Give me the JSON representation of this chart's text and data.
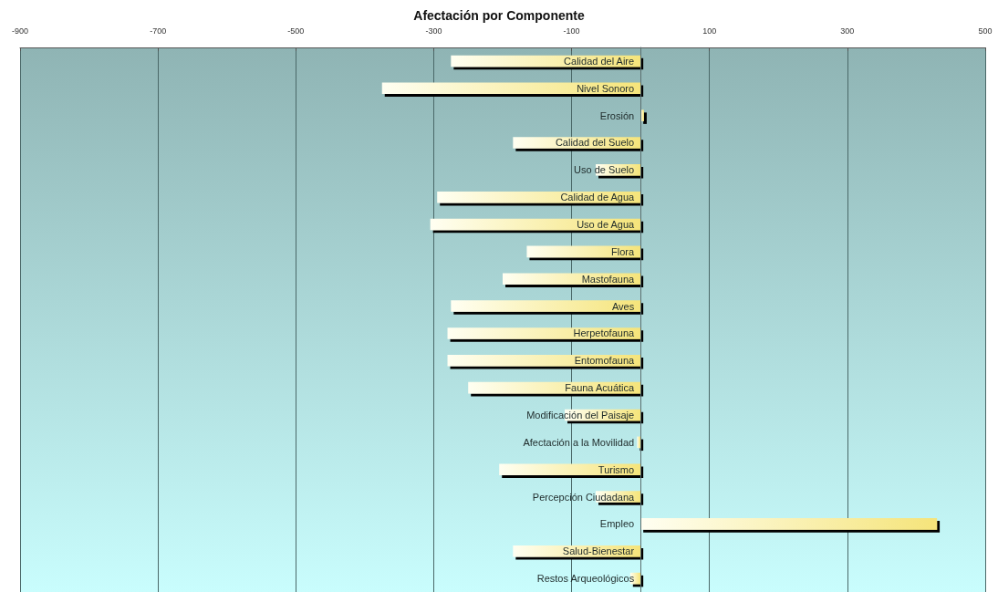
{
  "chart_data": {
    "type": "bar",
    "orientation": "horizontal",
    "title": "Afectación por Componente",
    "categories": [
      "Calidad del Aire",
      "Nivel Sonoro",
      "Erosión",
      "Calidad del Suelo",
      "Uso de Suelo",
      "Calidad de Agua",
      "Uso de Agua",
      "Flora",
      "Mastofauna",
      "Aves",
      "Herpetofauna",
      "Entomofauna",
      "Fauna Acuática",
      "Modificación del Paisaje",
      "Afectación a la Movilidad",
      "Turismo",
      "Percepción Ciudadana",
      "Empleo",
      "Salud-Bienestar",
      "Restos Arqueológicos"
    ],
    "values": [
      -275,
      -375,
      5,
      -185,
      -65,
      -295,
      -305,
      -165,
      -200,
      -275,
      -280,
      -280,
      -250,
      -110,
      -5,
      -205,
      -65,
      430,
      -185,
      -15
    ],
    "color": "#f5e47a",
    "xlim": [
      -900,
      500
    ],
    "xticks": [
      -900,
      -700,
      -500,
      -300,
      -100,
      100,
      300,
      500
    ],
    "grid": "x"
  }
}
